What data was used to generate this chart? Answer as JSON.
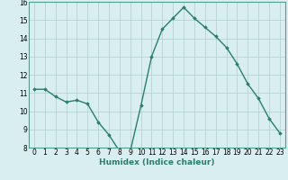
{
  "x": [
    0,
    1,
    2,
    3,
    4,
    5,
    6,
    7,
    8,
    9,
    10,
    11,
    12,
    13,
    14,
    15,
    16,
    17,
    18,
    19,
    20,
    21,
    22,
    23
  ],
  "y": [
    11.2,
    11.2,
    10.8,
    10.5,
    10.6,
    10.4,
    9.4,
    8.7,
    7.8,
    7.8,
    10.3,
    13.0,
    14.5,
    15.1,
    15.7,
    15.1,
    14.6,
    14.1,
    13.5,
    12.6,
    11.5,
    10.7,
    9.6,
    8.8
  ],
  "line_color": "#2d7d6e",
  "marker": "D",
  "marker_size": 1.8,
  "bg_color": "#d8eef0",
  "grid_color": "#b0cdd0",
  "xlabel": "Humidex (Indice chaleur)",
  "ylim": [
    8,
    16
  ],
  "xlim_min": -0.5,
  "xlim_max": 23.5,
  "yticks": [
    8,
    9,
    10,
    11,
    12,
    13,
    14,
    15,
    16
  ],
  "xticks": [
    0,
    1,
    2,
    3,
    4,
    5,
    6,
    7,
    8,
    9,
    10,
    11,
    12,
    13,
    14,
    15,
    16,
    17,
    18,
    19,
    20,
    21,
    22,
    23
  ],
  "xlabel_fontsize": 6.5,
  "tick_fontsize": 5.5,
  "line_width": 1.0,
  "spine_color": "#5a9a8a"
}
